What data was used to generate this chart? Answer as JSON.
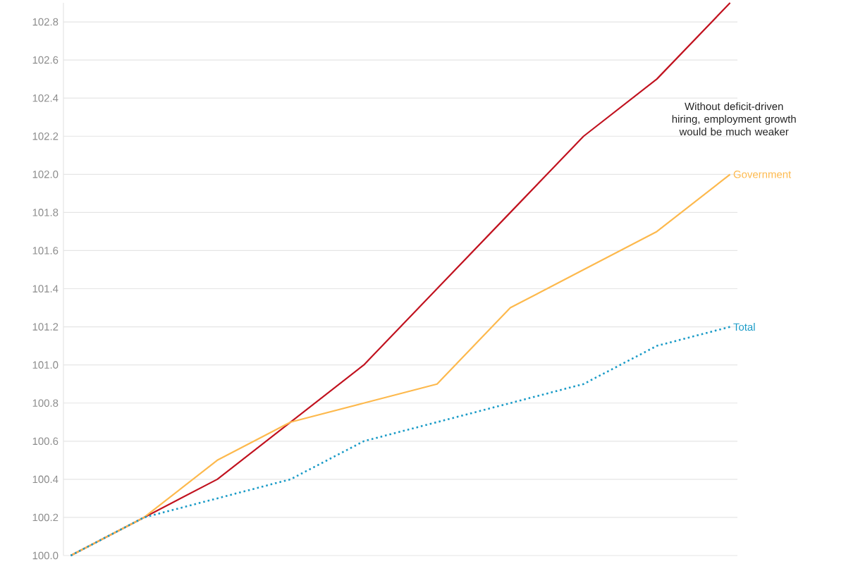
{
  "chart_data": {
    "type": "line",
    "categories": [
      null,
      null,
      null,
      null,
      null,
      null,
      null,
      null,
      null,
      null
    ],
    "series": [
      {
        "color": "#c1121f",
        "line_style": "solid",
        "values": [
          100.0,
          100.2,
          100.4,
          100.7,
          101.0,
          101.4,
          101.8,
          102.2,
          102.5,
          102.9
        ]
      },
      {
        "name": "Government",
        "color": "#fdb94d",
        "line_style": "solid",
        "values": [
          100.0,
          100.2,
          100.5,
          100.7,
          100.8,
          100.9,
          101.3,
          101.5,
          101.7,
          102.0
        ]
      },
      {
        "name": "Total",
        "color": "#1a9bc7",
        "line_style": "dotted",
        "values": [
          100.0,
          100.2,
          100.3,
          100.4,
          100.6,
          100.7,
          100.8,
          100.9,
          101.1,
          101.2
        ]
      }
    ],
    "ylim": [
      100.0,
      102.9
    ],
    "yticks": [
      {
        "value": 100.0,
        "label": "100.0"
      },
      100.2,
      100.4,
      100.6,
      100.8,
      {
        "value": 101.0,
        "label": "101.0"
      },
      101.2,
      101.4,
      101.6,
      101.8,
      {
        "value": 102.0,
        "label": "102.0"
      },
      102.2,
      102.4,
      102.6,
      102.8
    ],
    "grid": "y",
    "tick_labels": "y",
    "annotations": [
      "Without deficit-driven hiring, employment growth would be much weaker"
    ]
  }
}
